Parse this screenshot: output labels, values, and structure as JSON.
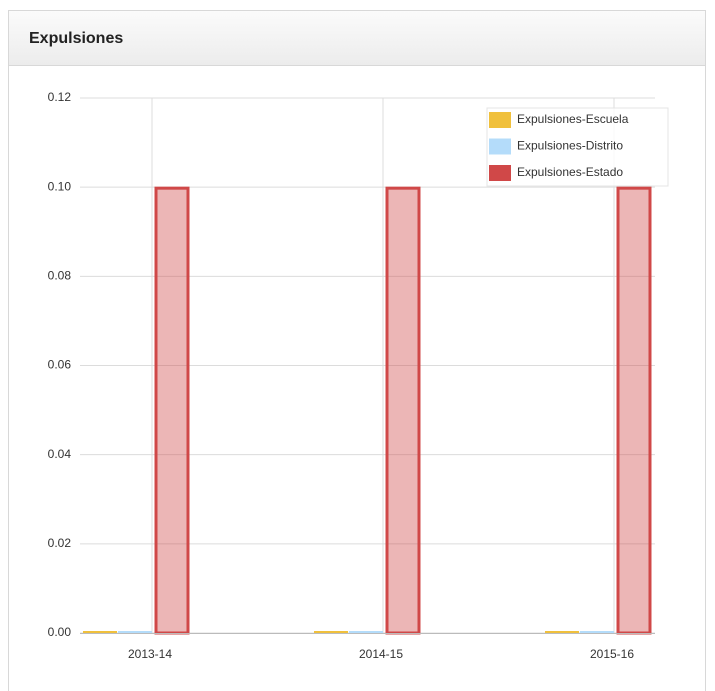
{
  "panel_title": "Expulsiones",
  "chart_data": {
    "type": "bar",
    "categories": [
      "2013-14",
      "2014-15",
      "2015-16"
    ],
    "series": [
      {
        "name": "Expulsiones-Escuela",
        "color": "#f0c03c",
        "values": [
          0,
          0,
          0
        ]
      },
      {
        "name": "Expulsiones-Distrito",
        "color": "#b4dcfa",
        "values": [
          0,
          0,
          0
        ]
      },
      {
        "name": "Expulsiones-Estado",
        "color": "#d04848",
        "values": [
          0.1,
          0.1,
          0.1
        ]
      }
    ],
    "ylim": [
      0,
      0.12
    ],
    "yticks": [
      {
        "value": 0,
        "label": "0.00"
      },
      {
        "value": 0.02,
        "label": "0.02"
      },
      {
        "value": 0.04,
        "label": "0.04"
      },
      {
        "value": 0.06,
        "label": "0.06"
      },
      {
        "value": 0.08,
        "label": "0.08"
      },
      {
        "value": 0.1,
        "label": "0.10"
      },
      {
        "value": 0.12,
        "label": "0.12"
      }
    ],
    "grid": true,
    "legend": "top-right"
  }
}
